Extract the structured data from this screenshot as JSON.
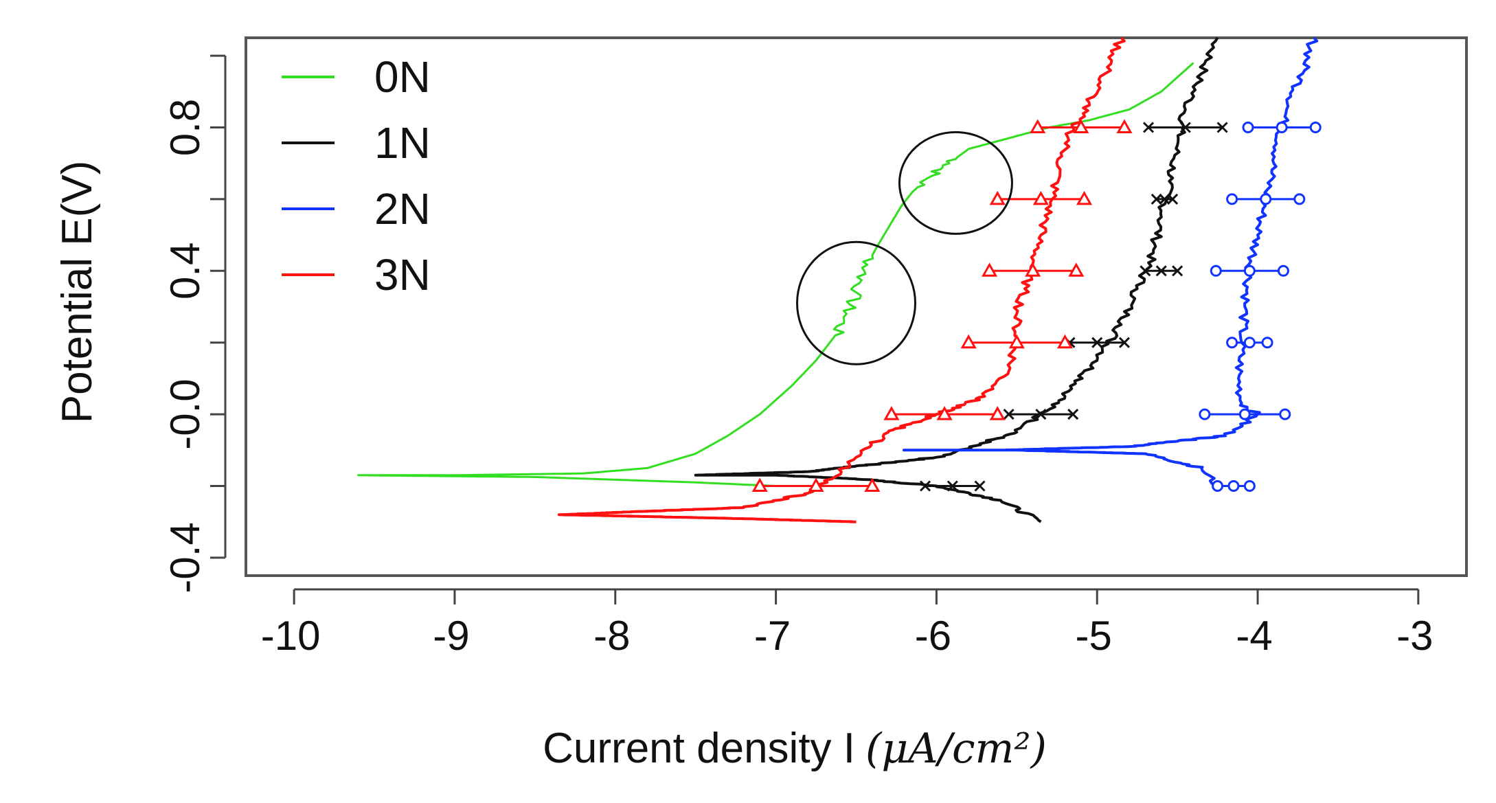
{
  "chart_data": {
    "type": "line",
    "title": "",
    "xlabel": "Current density I",
    "xlabel_unit": "(μA/cm²)",
    "ylabel": "Potential E(V)",
    "xlim": [
      -10.3,
      -2.7
    ],
    "ylim": [
      -0.45,
      1.05
    ],
    "xticks": [
      -10,
      -9,
      -8,
      -7,
      -6,
      -5,
      -4,
      -3
    ],
    "xtick_labels": [
      "-10",
      "-9",
      "-8",
      "-7",
      "-6",
      "-5",
      "-4",
      "-3"
    ],
    "yticks": [
      -0.4,
      0.0,
      0.4,
      0.8
    ],
    "ytick_labels": [
      "-0.4",
      "-0.0",
      "0.4",
      "0.8"
    ],
    "yticks_minor": [
      -0.2,
      0.2,
      0.6,
      1.0
    ],
    "legend_position": "top-left",
    "series": [
      {
        "name": "0N",
        "color": "#33dd22",
        "marker": "none",
        "points": [
          [
            -4.4,
            0.98
          ],
          [
            -4.6,
            0.9
          ],
          [
            -4.8,
            0.85
          ],
          [
            -5.05,
            0.82
          ],
          [
            -5.3,
            0.8
          ],
          [
            -5.55,
            0.77
          ],
          [
            -5.8,
            0.74
          ],
          [
            -5.92,
            0.7
          ],
          [
            -6.05,
            0.66
          ],
          [
            -6.15,
            0.62
          ],
          [
            -6.22,
            0.58
          ],
          [
            -6.3,
            0.52
          ],
          [
            -6.38,
            0.46
          ],
          [
            -6.45,
            0.4
          ],
          [
            -6.5,
            0.34
          ],
          [
            -6.56,
            0.28
          ],
          [
            -6.63,
            0.22
          ],
          [
            -6.75,
            0.15
          ],
          [
            -6.9,
            0.08
          ],
          [
            -7.1,
            0.0
          ],
          [
            -7.3,
            -0.06
          ],
          [
            -7.5,
            -0.11
          ],
          [
            -7.8,
            -0.15
          ],
          [
            -8.2,
            -0.165
          ],
          [
            -9.0,
            -0.17
          ],
          [
            -9.6,
            -0.17
          ],
          [
            -8.5,
            -0.175
          ],
          [
            -7.5,
            -0.19
          ],
          [
            -7.0,
            -0.2
          ]
        ],
        "wiggle_regions": [
          [
            0.64,
            0.72
          ],
          [
            0.22,
            0.44
          ]
        ]
      },
      {
        "name": "1N",
        "color": "#111111",
        "marker": "x",
        "points": [
          [
            -4.25,
            1.05
          ],
          [
            -4.35,
            0.95
          ],
          [
            -4.45,
            0.85
          ],
          [
            -4.5,
            0.75
          ],
          [
            -4.55,
            0.65
          ],
          [
            -4.6,
            0.55
          ],
          [
            -4.65,
            0.45
          ],
          [
            -4.75,
            0.35
          ],
          [
            -4.85,
            0.25
          ],
          [
            -5.0,
            0.15
          ],
          [
            -5.2,
            0.05
          ],
          [
            -5.5,
            -0.05
          ],
          [
            -6.0,
            -0.12
          ],
          [
            -6.8,
            -0.16
          ],
          [
            -7.5,
            -0.17
          ],
          [
            -7.0,
            -0.17
          ],
          [
            -6.5,
            -0.18
          ],
          [
            -6.0,
            -0.2
          ],
          [
            -5.6,
            -0.24
          ],
          [
            -5.35,
            -0.3
          ]
        ],
        "error_bars": [
          [
            -4.45,
            0.8,
            0.23
          ],
          [
            -4.58,
            0.6,
            0.05
          ],
          [
            -4.6,
            0.4,
            0.1
          ],
          [
            -5.0,
            0.2,
            0.17
          ],
          [
            -5.35,
            0.0,
            0.2
          ],
          [
            -5.9,
            -0.2,
            0.17
          ]
        ]
      },
      {
        "name": "2N",
        "color": "#1133ff",
        "marker": "o",
        "points": [
          [
            -3.65,
            1.05
          ],
          [
            -3.72,
            0.95
          ],
          [
            -3.82,
            0.85
          ],
          [
            -3.85,
            0.8
          ],
          [
            -3.9,
            0.7
          ],
          [
            -3.95,
            0.6
          ],
          [
            -4.0,
            0.5
          ],
          [
            -4.05,
            0.4
          ],
          [
            -4.08,
            0.3
          ],
          [
            -4.1,
            0.2
          ],
          [
            -4.12,
            0.1
          ],
          [
            -4.1,
            0.03
          ],
          [
            -4.0,
            0.0
          ],
          [
            -4.2,
            -0.06
          ],
          [
            -4.8,
            -0.09
          ],
          [
            -5.6,
            -0.1
          ],
          [
            -6.2,
            -0.1
          ],
          [
            -5.5,
            -0.1
          ],
          [
            -4.7,
            -0.11
          ],
          [
            -4.35,
            -0.15
          ],
          [
            -4.25,
            -0.2
          ]
        ],
        "error_bars": [
          [
            -3.85,
            0.8,
            0.21
          ],
          [
            -3.95,
            0.6,
            0.21
          ],
          [
            -4.05,
            0.4,
            0.21
          ],
          [
            -4.05,
            0.2,
            0.11
          ],
          [
            -4.08,
            0.0,
            0.25
          ],
          [
            -4.15,
            -0.2,
            0.1
          ]
        ]
      },
      {
        "name": "3N",
        "color": "#ff1111",
        "marker": "triangle",
        "points": [
          [
            -4.85,
            1.05
          ],
          [
            -4.95,
            0.95
          ],
          [
            -5.05,
            0.87
          ],
          [
            -5.15,
            0.8
          ],
          [
            -5.22,
            0.72
          ],
          [
            -5.28,
            0.6
          ],
          [
            -5.35,
            0.5
          ],
          [
            -5.4,
            0.42
          ],
          [
            -5.45,
            0.35
          ],
          [
            -5.5,
            0.28
          ],
          [
            -5.5,
            0.2
          ],
          [
            -5.55,
            0.12
          ],
          [
            -5.7,
            0.05
          ],
          [
            -6.0,
            0.0
          ],
          [
            -6.3,
            -0.05
          ],
          [
            -6.5,
            -0.12
          ],
          [
            -6.65,
            -0.18
          ],
          [
            -6.8,
            -0.22
          ],
          [
            -7.2,
            -0.26
          ],
          [
            -8.35,
            -0.28
          ],
          [
            -7.3,
            -0.29
          ],
          [
            -6.5,
            -0.3
          ]
        ],
        "error_bars": [
          [
            -5.1,
            0.8,
            0.27
          ],
          [
            -5.35,
            0.6,
            0.27
          ],
          [
            -5.4,
            0.4,
            0.27
          ],
          [
            -5.5,
            0.2,
            0.3
          ],
          [
            -5.95,
            0.0,
            0.33
          ],
          [
            -6.75,
            -0.2,
            0.35
          ]
        ]
      }
    ]
  }
}
